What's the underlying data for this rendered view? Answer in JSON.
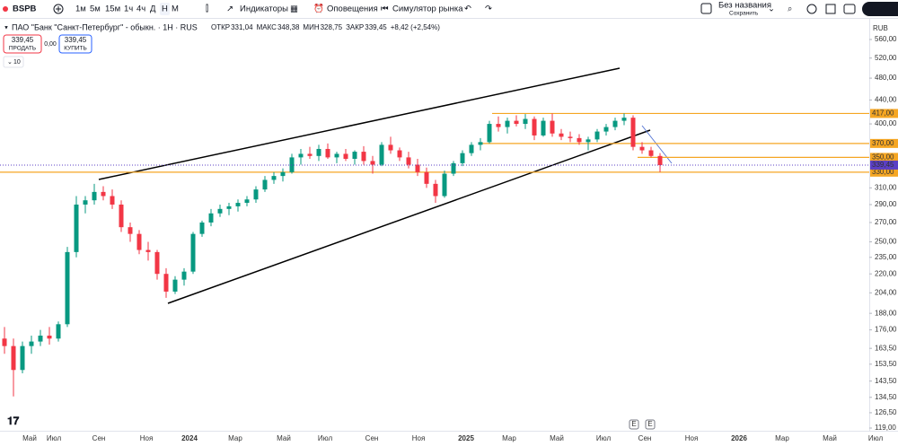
{
  "toolbar": {
    "symbol": "BSPB",
    "intervals": [
      "1м",
      "5м",
      "15м",
      "1ч",
      "4ч",
      "Д",
      "Н",
      "М"
    ],
    "indicators": "Индикаторы",
    "alerts": "Оповещения",
    "replay": "Симулятор рынка",
    "layout_name": "Без названия",
    "save": "Сохранить",
    "publish": "Опубликовать"
  },
  "legend": {
    "title": "ПАО \"Банк \"Санкт-Петербург\" - обыкн. · 1H · RUS",
    "open_label": "ОТКР",
    "open": "331,04",
    "high_label": "МАКС",
    "high": "348,38",
    "low_label": "МИН",
    "low": "328,75",
    "close_label": "ЗАКР",
    "close": "339,45",
    "change": "+8,42 (+2,54%)"
  },
  "trade": {
    "sell_price": "339,45",
    "sell": "ПРОДАТЬ",
    "spread": "0,00",
    "buy_price": "339,45",
    "buy": "КУПИТЬ"
  },
  "indicators_count": "10",
  "chart_data": {
    "type": "candlestick",
    "currency": "RUB",
    "log_scale": true,
    "colors": {
      "up": "#089981",
      "down": "#f23645",
      "level": "#f5a623",
      "last": "#5b3fc4"
    },
    "x_labels": [
      "Май",
      "Июл",
      "Сен",
      "Ноя",
      "2024",
      "Мар",
      "Май",
      "Июл",
      "Сен",
      "Ноя",
      "2025",
      "Мар",
      "Май",
      "Июл",
      "Сен",
      "Ноя",
      "2026",
      "Мар",
      "Май",
      "Июл"
    ],
    "ylim": [
      119,
      560
    ],
    "yticks": [
      {
        "value": 560,
        "label": "560,00"
      },
      {
        "value": 520,
        "label": "520,00"
      },
      {
        "value": 480,
        "label": "480,00"
      },
      {
        "value": 440,
        "label": "440,00"
      },
      {
        "value": 400,
        "label": "400,00"
      },
      {
        "value": 310,
        "label": "310,00"
      },
      {
        "value": 290,
        "label": "290,00"
      },
      {
        "value": 270,
        "label": "270,00"
      },
      {
        "value": 250,
        "label": "250,00"
      },
      {
        "value": 235,
        "label": "235,00"
      },
      {
        "value": 220,
        "label": "220,00"
      },
      {
        "value": 204,
        "label": "204,00"
      },
      {
        "value": 188,
        "label": "188,00"
      },
      {
        "value": 176,
        "label": "176,00"
      },
      {
        "value": 163.5,
        "label": "163,50"
      },
      {
        "value": 153.5,
        "label": "153,50"
      },
      {
        "value": 143.5,
        "label": "143,50"
      },
      {
        "value": 134.5,
        "label": "134,50"
      },
      {
        "value": 126.5,
        "label": "126,50"
      },
      {
        "value": 119,
        "label": "119,00"
      }
    ],
    "levels": [
      {
        "value": 417,
        "label": "417,00"
      },
      {
        "value": 370,
        "label": "370,00"
      },
      {
        "value": 350,
        "label": "350,00"
      },
      {
        "value": 330,
        "label": "330,00"
      }
    ],
    "last": {
      "value": 339.45,
      "label": "339,45"
    },
    "events": [
      "E",
      "E"
    ],
    "candles": [
      [
        170,
        178,
        160,
        165
      ],
      [
        165,
        170,
        135,
        150
      ],
      [
        150,
        168,
        148,
        165
      ],
      [
        165,
        172,
        160,
        168
      ],
      [
        168,
        176,
        165,
        172
      ],
      [
        172,
        178,
        166,
        170
      ],
      [
        170,
        182,
        168,
        180
      ],
      [
        180,
        245,
        178,
        240
      ],
      [
        240,
        300,
        235,
        290
      ],
      [
        290,
        300,
        280,
        295
      ],
      [
        295,
        315,
        290,
        305
      ],
      [
        305,
        312,
        295,
        300
      ],
      [
        300,
        308,
        285,
        290
      ],
      [
        290,
        295,
        260,
        265
      ],
      [
        265,
        270,
        250,
        258
      ],
      [
        258,
        262,
        238,
        242
      ],
      [
        242,
        250,
        232,
        240
      ],
      [
        240,
        242,
        215,
        220
      ],
      [
        220,
        225,
        200,
        205
      ],
      [
        205,
        218,
        203,
        215
      ],
      [
        215,
        225,
        210,
        222
      ],
      [
        222,
        260,
        220,
        258
      ],
      [
        258,
        272,
        255,
        270
      ],
      [
        270,
        285,
        266,
        280
      ],
      [
        280,
        290,
        276,
        285
      ],
      [
        285,
        292,
        278,
        288
      ],
      [
        288,
        296,
        282,
        292
      ],
      [
        292,
        300,
        288,
        296
      ],
      [
        296,
        312,
        292,
        308
      ],
      [
        308,
        325,
        305,
        320
      ],
      [
        320,
        330,
        315,
        325
      ],
      [
        325,
        335,
        318,
        330
      ],
      [
        330,
        355,
        328,
        350
      ],
      [
        350,
        362,
        340,
        355
      ],
      [
        355,
        365,
        348,
        352
      ],
      [
        352,
        368,
        345,
        362
      ],
      [
        362,
        370,
        348,
        350
      ],
      [
        350,
        358,
        342,
        355
      ],
      [
        355,
        362,
        345,
        348
      ],
      [
        348,
        360,
        340,
        358
      ],
      [
        358,
        366,
        340,
        345
      ],
      [
        345,
        352,
        328,
        340
      ],
      [
        340,
        372,
        338,
        368
      ],
      [
        368,
        380,
        355,
        360
      ],
      [
        360,
        364,
        345,
        350
      ],
      [
        350,
        358,
        335,
        340
      ],
      [
        340,
        348,
        325,
        330
      ],
      [
        330,
        336,
        310,
        315
      ],
      [
        315,
        320,
        292,
        300
      ],
      [
        300,
        332,
        298,
        328
      ],
      [
        328,
        345,
        325,
        342
      ],
      [
        342,
        360,
        338,
        356
      ],
      [
        356,
        372,
        352,
        368
      ],
      [
        368,
        378,
        360,
        372
      ],
      [
        372,
        405,
        370,
        400
      ],
      [
        400,
        412,
        388,
        395
      ],
      [
        395,
        410,
        385,
        405
      ],
      [
        405,
        414,
        396,
        400
      ],
      [
        400,
        416,
        392,
        408
      ],
      [
        408,
        412,
        375,
        382
      ],
      [
        382,
        410,
        380,
        405
      ],
      [
        405,
        417,
        380,
        385
      ],
      [
        385,
        392,
        375,
        380
      ],
      [
        380,
        388,
        372,
        378
      ],
      [
        378,
        384,
        368,
        372
      ],
      [
        372,
        380,
        360,
        376
      ],
      [
        376,
        392,
        372,
        388
      ],
      [
        388,
        400,
        382,
        395
      ],
      [
        395,
        410,
        390,
        405
      ],
      [
        405,
        417,
        398,
        410
      ],
      [
        410,
        414,
        360,
        365
      ],
      [
        365,
        372,
        355,
        360
      ],
      [
        360,
        365,
        350,
        352
      ],
      [
        352,
        356,
        330,
        339.45
      ]
    ]
  }
}
